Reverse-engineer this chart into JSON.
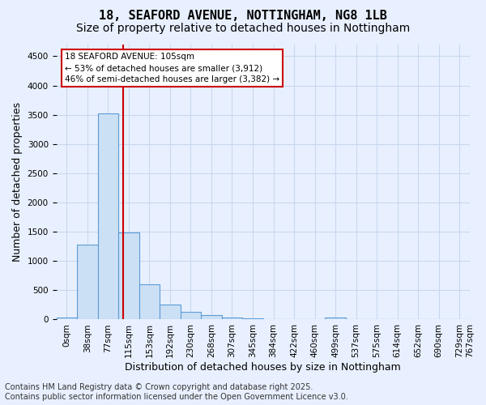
{
  "title_line1": "18, SEAFORD AVENUE, NOTTINGHAM, NG8 1LB",
  "title_line2": "Size of property relative to detached houses in Nottingham",
  "xlabel": "Distribution of detached houses by size in Nottingham",
  "ylabel": "Number of detached properties",
  "bar_values": [
    40,
    1280,
    3530,
    1490,
    600,
    250,
    130,
    80,
    40,
    20,
    10,
    0,
    0,
    40,
    0,
    0,
    0,
    0,
    0,
    0
  ],
  "bin_labels": [
    "0sqm",
    "38sqm",
    "77sqm",
    "115sqm",
    "153sqm",
    "192sqm",
    "230sqm",
    "268sqm",
    "307sqm",
    "345sqm",
    "384sqm",
    "422sqm",
    "460sqm",
    "499sqm",
    "537sqm",
    "575sqm",
    "614sqm",
    "652sqm",
    "690sqm",
    "729sqm"
  ],
  "bar_color": "#cce0f5",
  "bar_edge_color": "#5b9bd5",
  "vline_x": 2.75,
  "vline_color": "#cc0000",
  "annotation_text": "18 SEAFORD AVENUE: 105sqm\n← 53% of detached houses are smaller (3,912)\n46% of semi-detached houses are larger (3,382) →",
  "annotation_box_color": "#ffffff",
  "annotation_box_edge": "#cc0000",
  "ylim": [
    0,
    4700
  ],
  "yticks": [
    0,
    500,
    1000,
    1500,
    2000,
    2500,
    3000,
    3500,
    4000,
    4500
  ],
  "extra_label": "767sqm",
  "footer_line1": "Contains HM Land Registry data © Crown copyright and database right 2025.",
  "footer_line2": "Contains public sector information licensed under the Open Government Licence v3.0.",
  "bg_color": "#e8f0ff",
  "grid_color": "#c8d8ee",
  "title_fontsize": 11,
  "subtitle_fontsize": 10,
  "axis_label_fontsize": 9,
  "tick_fontsize": 7.5,
  "footer_fontsize": 7
}
